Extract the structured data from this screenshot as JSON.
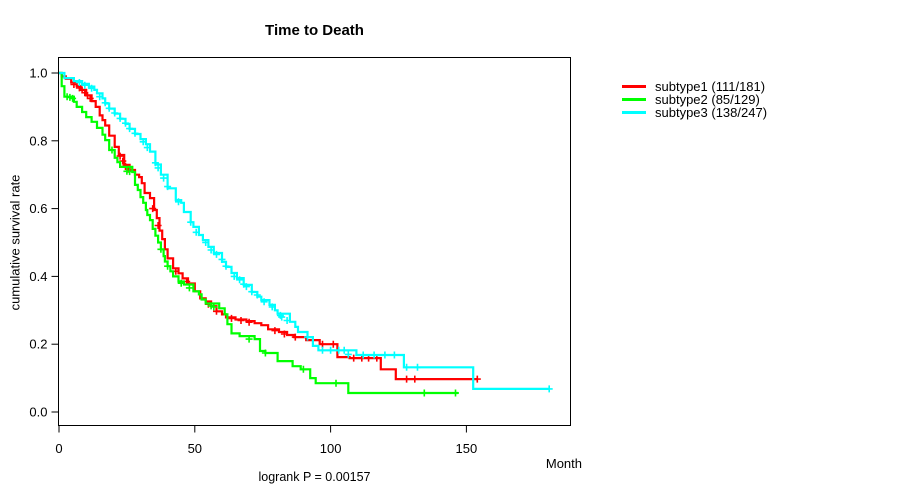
{
  "chart_data": {
    "type": "line",
    "variant": "kaplan-meier-step",
    "title": "Time to Death",
    "xlabel": "Month",
    "ylabel": "cumulative survival rate",
    "footnote": "logrank P = 0.00157",
    "xlim": [
      0,
      188
    ],
    "ylim": [
      0.0,
      1.0
    ],
    "x_ticks": [
      "0",
      "50",
      "100",
      "150"
    ],
    "y_ticks": [
      "0.0",
      "0.2",
      "0.4",
      "0.6",
      "0.8",
      "1.0"
    ],
    "grid": false,
    "legend_position": "right-outside",
    "axis_color": "#000000",
    "background": "#ffffff",
    "series": [
      {
        "name": "subtype1",
        "label": "subtype1 (111/181)",
        "events": 111,
        "n": 181,
        "color": "#ff0000",
        "steps": [
          [
            0,
            1.0
          ],
          [
            1,
            0.99
          ],
          [
            2.5,
            0.983
          ],
          [
            4.5,
            0.972
          ],
          [
            6.5,
            0.961
          ],
          [
            8,
            0.95
          ],
          [
            10,
            0.934
          ],
          [
            12,
            0.917
          ],
          [
            13.5,
            0.9
          ],
          [
            15,
            0.875
          ],
          [
            16,
            0.861
          ],
          [
            17,
            0.845
          ],
          [
            18.5,
            0.815
          ],
          [
            20.5,
            0.782
          ],
          [
            22,
            0.758
          ],
          [
            24,
            0.729
          ],
          [
            26,
            0.714
          ],
          [
            28,
            0.7
          ],
          [
            29.5,
            0.693
          ],
          [
            30.5,
            0.675
          ],
          [
            31.5,
            0.646
          ],
          [
            33.5,
            0.631
          ],
          [
            35,
            0.596
          ],
          [
            36,
            0.572
          ],
          [
            37,
            0.535
          ],
          [
            38,
            0.51
          ],
          [
            39,
            0.48
          ],
          [
            40,
            0.453
          ],
          [
            42,
            0.424
          ],
          [
            44,
            0.409
          ],
          [
            45.5,
            0.394
          ],
          [
            47.5,
            0.379
          ],
          [
            50,
            0.356
          ],
          [
            52,
            0.335
          ],
          [
            54,
            0.326
          ],
          [
            56,
            0.312
          ],
          [
            58,
            0.297
          ],
          [
            60,
            0.288
          ],
          [
            61.5,
            0.279
          ],
          [
            65,
            0.273
          ],
          [
            69,
            0.268
          ],
          [
            72,
            0.262
          ],
          [
            74.5,
            0.256
          ],
          [
            77,
            0.244
          ],
          [
            81,
            0.236
          ],
          [
            84,
            0.227
          ],
          [
            86.5,
            0.221
          ],
          [
            91,
            0.212
          ],
          [
            96,
            0.2
          ],
          [
            102.5,
            0.162
          ],
          [
            107,
            0.159
          ],
          [
            118.5,
            0.126
          ],
          [
            124,
            0.097
          ],
          [
            154,
            0.097
          ]
        ],
        "censors": [
          [
            5.5,
            0.966
          ],
          [
            7.5,
            0.956
          ],
          [
            8.5,
            0.95
          ],
          [
            9.5,
            0.942
          ],
          [
            10.5,
            0.934
          ],
          [
            11.5,
            0.925
          ],
          [
            22.5,
            0.755
          ],
          [
            23.5,
            0.74
          ],
          [
            24.5,
            0.725
          ],
          [
            25.5,
            0.716
          ],
          [
            34.5,
            0.6
          ],
          [
            36.5,
            0.55
          ],
          [
            43,
            0.415
          ],
          [
            47,
            0.385
          ],
          [
            55,
            0.318
          ],
          [
            58,
            0.297
          ],
          [
            63.5,
            0.276
          ],
          [
            67,
            0.27
          ],
          [
            70,
            0.265
          ],
          [
            79.5,
            0.24
          ],
          [
            83,
            0.23
          ],
          [
            87,
            0.221
          ],
          [
            97,
            0.2
          ],
          [
            101,
            0.2
          ],
          [
            108.5,
            0.159
          ],
          [
            111.5,
            0.159
          ],
          [
            114,
            0.159
          ],
          [
            117,
            0.159
          ],
          [
            128,
            0.097
          ],
          [
            131,
            0.097
          ],
          [
            154,
            0.097
          ]
        ]
      },
      {
        "name": "subtype2",
        "label": "subtype2 (85/129)",
        "events": 85,
        "n": 129,
        "color": "#00ff00",
        "steps": [
          [
            0,
            1.0
          ],
          [
            1,
            0.961
          ],
          [
            2,
            0.93
          ],
          [
            5.5,
            0.915
          ],
          [
            6.5,
            0.9
          ],
          [
            8.5,
            0.885
          ],
          [
            10,
            0.87
          ],
          [
            12,
            0.856
          ],
          [
            14,
            0.838
          ],
          [
            16,
            0.818
          ],
          [
            17,
            0.802
          ],
          [
            18.5,
            0.773
          ],
          [
            20.5,
            0.75
          ],
          [
            21.5,
            0.737
          ],
          [
            22.5,
            0.723
          ],
          [
            27,
            0.708
          ],
          [
            28,
            0.67
          ],
          [
            29,
            0.655
          ],
          [
            30,
            0.634
          ],
          [
            31,
            0.617
          ],
          [
            32,
            0.596
          ],
          [
            32.5,
            0.581
          ],
          [
            33.5,
            0.566
          ],
          [
            34.5,
            0.54
          ],
          [
            35.5,
            0.52
          ],
          [
            36.5,
            0.5
          ],
          [
            37.5,
            0.48
          ],
          [
            38.5,
            0.46
          ],
          [
            39,
            0.444
          ],
          [
            40,
            0.43
          ],
          [
            41,
            0.415
          ],
          [
            42,
            0.4
          ],
          [
            44,
            0.385
          ],
          [
            46,
            0.376
          ],
          [
            49.5,
            0.356
          ],
          [
            51.5,
            0.347
          ],
          [
            52.5,
            0.332
          ],
          [
            54,
            0.32
          ],
          [
            59,
            0.306
          ],
          [
            61,
            0.288
          ],
          [
            62,
            0.259
          ],
          [
            63.5,
            0.232
          ],
          [
            66.5,
            0.224
          ],
          [
            72,
            0.215
          ],
          [
            74,
            0.18
          ],
          [
            76,
            0.174
          ],
          [
            80.5,
            0.15
          ],
          [
            86,
            0.135
          ],
          [
            89,
            0.126
          ],
          [
            92.5,
            0.1
          ],
          [
            94.5,
            0.085
          ],
          [
            106.5,
            0.056
          ],
          [
            147,
            0.056
          ]
        ],
        "censors": [
          [
            3,
            0.93
          ],
          [
            4,
            0.928
          ],
          [
            5,
            0.925
          ],
          [
            19.5,
            0.773
          ],
          [
            25,
            0.71
          ],
          [
            26,
            0.709
          ],
          [
            37.5,
            0.48
          ],
          [
            40,
            0.43
          ],
          [
            45,
            0.38
          ],
          [
            48,
            0.366
          ],
          [
            56,
            0.313
          ],
          [
            57,
            0.31
          ],
          [
            70,
            0.215
          ],
          [
            76,
            0.174
          ],
          [
            90,
            0.126
          ],
          [
            102,
            0.085
          ],
          [
            134.5,
            0.056
          ],
          [
            146,
            0.056
          ]
        ]
      },
      {
        "name": "subtype3",
        "label": "subtype3 (138/247)",
        "events": 138,
        "n": 247,
        "color": "#00ffff",
        "steps": [
          [
            0,
            1.0
          ],
          [
            2,
            0.985
          ],
          [
            5.5,
            0.976
          ],
          [
            8.5,
            0.968
          ],
          [
            11,
            0.96
          ],
          [
            13,
            0.95
          ],
          [
            14,
            0.94
          ],
          [
            16,
            0.925
          ],
          [
            17,
            0.91
          ],
          [
            18.5,
            0.895
          ],
          [
            20.5,
            0.88
          ],
          [
            22.5,
            0.865
          ],
          [
            24.5,
            0.85
          ],
          [
            26,
            0.835
          ],
          [
            28,
            0.82
          ],
          [
            30,
            0.805
          ],
          [
            32,
            0.79
          ],
          [
            33.5,
            0.768
          ],
          [
            35.5,
            0.73
          ],
          [
            37.5,
            0.7
          ],
          [
            40,
            0.66
          ],
          [
            43,
            0.625
          ],
          [
            45,
            0.617
          ],
          [
            46,
            0.59
          ],
          [
            48.5,
            0.56
          ],
          [
            49.5,
            0.546
          ],
          [
            51.5,
            0.522
          ],
          [
            53,
            0.507
          ],
          [
            55,
            0.487
          ],
          [
            57,
            0.469
          ],
          [
            60,
            0.443
          ],
          [
            61.5,
            0.428
          ],
          [
            63.5,
            0.41
          ],
          [
            65.5,
            0.395
          ],
          [
            68,
            0.375
          ],
          [
            71,
            0.354
          ],
          [
            73,
            0.34
          ],
          [
            74.5,
            0.33
          ],
          [
            77.5,
            0.316
          ],
          [
            79.5,
            0.3
          ],
          [
            80.5,
            0.29
          ],
          [
            85,
            0.266
          ],
          [
            87,
            0.251
          ],
          [
            88,
            0.236
          ],
          [
            91.5,
            0.221
          ],
          [
            93.5,
            0.195
          ],
          [
            95.5,
            0.182
          ],
          [
            109.5,
            0.168
          ],
          [
            127,
            0.132
          ],
          [
            152.5,
            0.068
          ],
          [
            180.5,
            0.068
          ]
        ],
        "censors": [
          [
            7.5,
            0.972
          ],
          [
            9.5,
            0.964
          ],
          [
            12,
            0.955
          ],
          [
            15,
            0.93
          ],
          [
            17,
            0.912
          ],
          [
            18.5,
            0.896
          ],
          [
            20.5,
            0.882
          ],
          [
            22.5,
            0.866
          ],
          [
            24.5,
            0.852
          ],
          [
            26,
            0.836
          ],
          [
            28,
            0.822
          ],
          [
            31,
            0.797
          ],
          [
            32.5,
            0.78
          ],
          [
            35.5,
            0.735
          ],
          [
            36.5,
            0.72
          ],
          [
            38.5,
            0.69
          ],
          [
            40,
            0.665
          ],
          [
            44,
            0.62
          ],
          [
            48.5,
            0.56
          ],
          [
            50.5,
            0.53
          ],
          [
            54,
            0.5
          ],
          [
            56,
            0.478
          ],
          [
            58,
            0.465
          ],
          [
            60,
            0.45
          ],
          [
            61.5,
            0.43
          ],
          [
            64.5,
            0.4
          ],
          [
            66.5,
            0.39
          ],
          [
            68,
            0.377
          ],
          [
            69,
            0.37
          ],
          [
            71,
            0.355
          ],
          [
            73,
            0.345
          ],
          [
            75.5,
            0.325
          ],
          [
            78.5,
            0.31
          ],
          [
            81.5,
            0.285
          ],
          [
            82,
            0.28
          ],
          [
            84,
            0.27
          ],
          [
            91.5,
            0.221
          ],
          [
            97,
            0.182
          ],
          [
            100,
            0.182
          ],
          [
            103,
            0.182
          ],
          [
            105,
            0.182
          ],
          [
            106.5,
            0.17
          ],
          [
            112,
            0.168
          ],
          [
            116,
            0.168
          ],
          [
            120,
            0.168
          ],
          [
            123.5,
            0.168
          ],
          [
            128,
            0.132
          ],
          [
            132,
            0.132
          ],
          [
            180.5,
            0.068
          ]
        ]
      }
    ]
  }
}
